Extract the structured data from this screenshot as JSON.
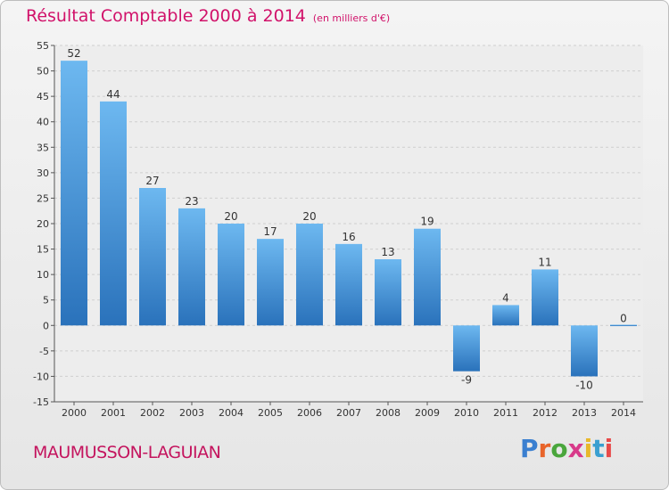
{
  "header": {
    "title": "Résultat Comptable 2000 à 2014",
    "subtitle": "(en milliers d'€)"
  },
  "footer": {
    "location": "MAUMUSSON-LAGUIAN",
    "brand": "Proxiti",
    "brand_colors": [
      "#3a7fd0",
      "#e8642a",
      "#4aa63c",
      "#d83a8a",
      "#e8b82a",
      "#3a9fd0",
      "#e84a4a"
    ]
  },
  "chart_data": {
    "type": "bar",
    "title": "Résultat Comptable 2000 à 2014",
    "subtitle": "(en milliers d'€)",
    "xlabel": "",
    "ylabel": "",
    "categories": [
      "2000",
      "2001",
      "2002",
      "2003",
      "2004",
      "2005",
      "2006",
      "2007",
      "2008",
      "2009",
      "2010",
      "2011",
      "2012",
      "2013",
      "2014"
    ],
    "values": [
      52,
      44,
      27,
      23,
      20,
      17,
      20,
      16,
      13,
      19,
      -9,
      4,
      11,
      -10,
      0
    ],
    "data_labels": [
      "52",
      "44",
      "27",
      "23",
      "20",
      "17",
      "20",
      "16",
      "13",
      "19",
      "-9",
      "4",
      "11",
      "-10",
      "0"
    ],
    "ylim": [
      -15,
      55
    ],
    "yticks": [
      -15,
      -10,
      -5,
      0,
      5,
      10,
      15,
      20,
      25,
      30,
      35,
      40,
      45,
      50,
      55
    ],
    "ytick_labels": [
      "-15",
      "-10",
      "-5",
      "0",
      "5",
      "10",
      "15",
      "20",
      "25",
      "30",
      "35",
      "40",
      "45",
      "50",
      "55"
    ],
    "grid": true,
    "bar_color": "#3d8fd6",
    "bar_color_light": "#6db8f0",
    "bar_color_dark": "#2a72bb"
  }
}
